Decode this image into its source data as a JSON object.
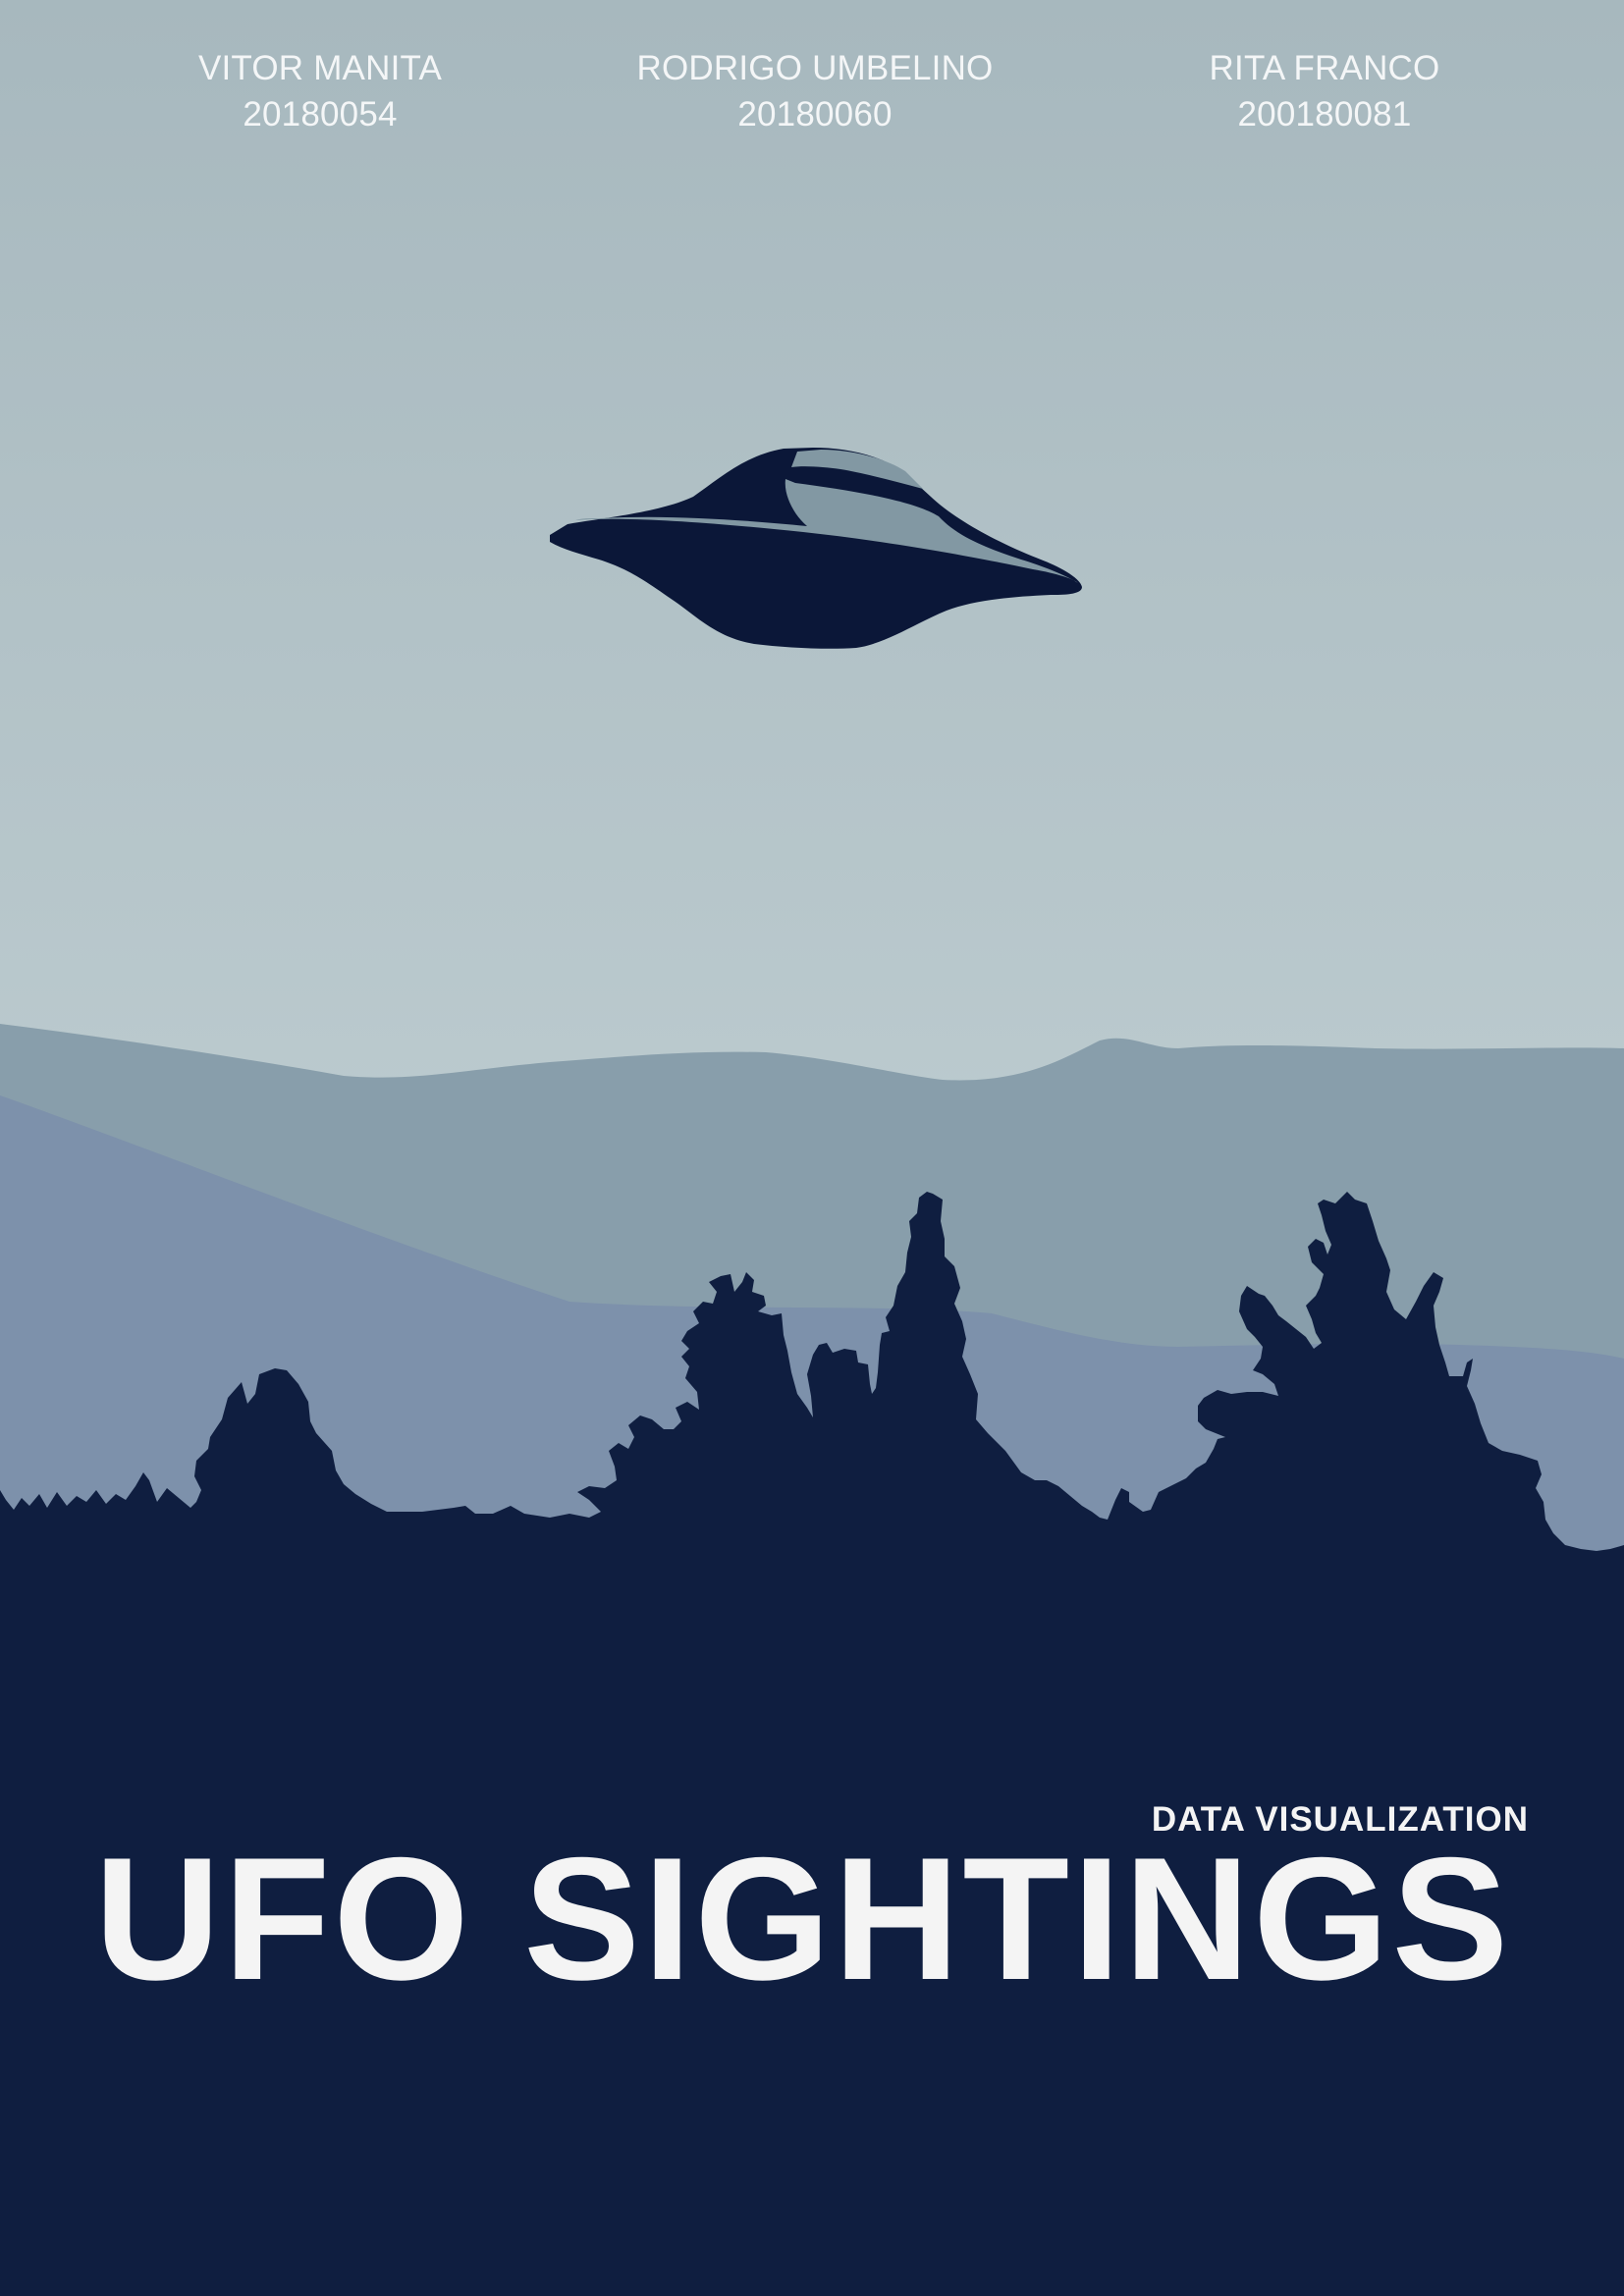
{
  "authors": [
    {
      "name": "VITOR MANITA",
      "id": "20180054"
    },
    {
      "name": "RODRIGO UMBELINO",
      "id": "20180060"
    },
    {
      "name": "RITA FRANCO",
      "id": "200180081"
    }
  ],
  "subtitle": "DATA VISUALIZATION",
  "title": "UFO SIGHTINGS",
  "colors": {
    "sky_top": "#a7b8be",
    "sky_bottom": "#bccbcf",
    "far_hills": "#889eab",
    "near_hills": "#7d91ab",
    "forest": "#0f1e40",
    "ufo_dark": "#0b1738",
    "ufo_light": "#8298a3",
    "text": "#f4f4f4"
  },
  "illustration": {
    "ufo": "ufo-icon",
    "trees": "pine-trees-silhouette"
  }
}
